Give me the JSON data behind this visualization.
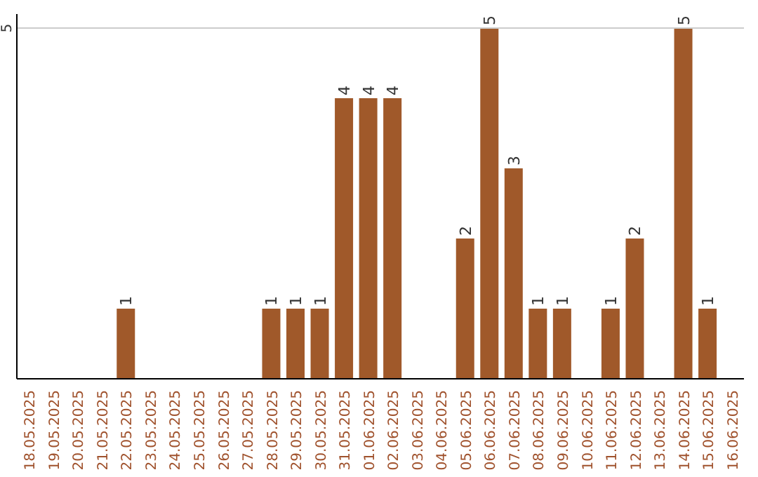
{
  "chart_data": {
    "type": "bar",
    "categories": [
      "18.05.2025",
      "19.05.2025",
      "20.05.2025",
      "21.05.2025",
      "22.05.2025",
      "23.05.2025",
      "24.05.2025",
      "25.05.2025",
      "26.05.2025",
      "27.05.2025",
      "28.05.2025",
      "29.05.2025",
      "30.05.2025",
      "31.05.2025",
      "01.06.2025",
      "02.06.2025",
      "03.06.2025",
      "04.06.2025",
      "05.06.2025",
      "06.06.2025",
      "07.06.2025",
      "08.06.2025",
      "09.06.2025",
      "10.06.2025",
      "11.06.2025",
      "12.06.2025",
      "13.06.2025",
      "14.06.2025",
      "15.06.2025",
      "16.06.2025"
    ],
    "values": [
      0,
      0,
      0,
      0,
      1,
      0,
      0,
      0,
      0,
      0,
      1,
      1,
      1,
      4,
      4,
      4,
      0,
      0,
      2,
      5,
      3,
      1,
      1,
      0,
      1,
      2,
      0,
      5,
      1,
      0
    ],
    "value_labels": [
      null,
      null,
      null,
      null,
      "1",
      null,
      null,
      null,
      null,
      null,
      "1",
      "1",
      "1",
      "4",
      "4",
      "4",
      null,
      null,
      "2",
      "5",
      "3",
      "1",
      "1",
      null,
      "1",
      "2",
      null,
      "5",
      "1",
      null
    ],
    "color": "#a0592a",
    "ylim": [
      0,
      5.2
    ],
    "yticks": [
      5
    ],
    "grid": "y"
  }
}
